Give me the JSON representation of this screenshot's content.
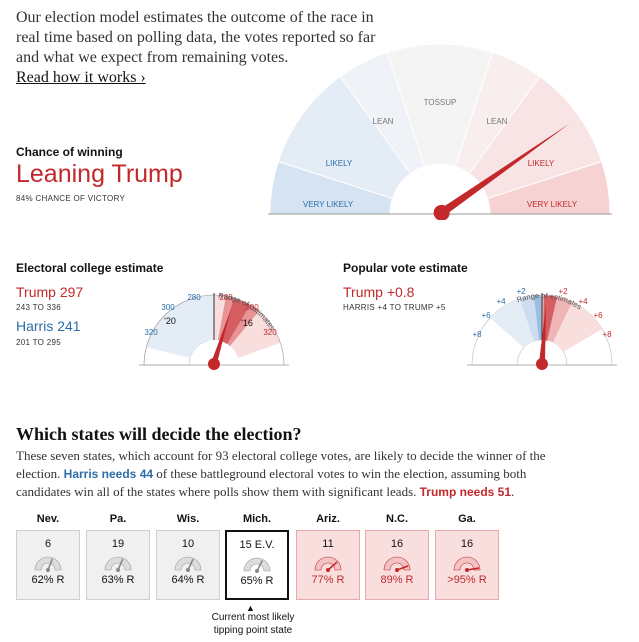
{
  "intro": {
    "text": "Our election model estimates the outcome of the race in real time based on polling data, the votes reported so far and what we expect from remaining votes.",
    "link": "Read how it works ›"
  },
  "chance": {
    "label": "Chance of winning",
    "value": "Leaning Trump",
    "sub": "84% CHANCE OF VICTORY",
    "trump_probability": 0.84,
    "segments": {
      "very_likely_left": "VERY LIKELY",
      "likely_left": "LIKELY",
      "lean_left": "LEAN",
      "tossup": "TOSSUP",
      "lean_right": "LEAN",
      "likely_right": "LIKELY",
      "very_likely_right": "VERY LIKELY"
    }
  },
  "electoral": {
    "label": "Electoral college estimate",
    "trump": "Trump 297",
    "trump_range": "243 TO 336",
    "harris": "Harris 241",
    "harris_range": "201 TO 295",
    "range_label": "Range of estimates",
    "ticks": {
      "t320l": "320",
      "t300l": "300",
      "t280l": "280",
      "t280r": "280",
      "t300r": "300",
      "t320r": "320",
      "y20": "'20",
      "y16": "'16"
    }
  },
  "popular": {
    "label": "Popular vote estimate",
    "trump": "Trump +0.8",
    "sub": "HARRIS +4 TO TRUMP +5",
    "range_label": "Range of estimates",
    "ticks": {
      "l8": "+8",
      "l6": "+6",
      "l4": "+4",
      "l2": "+2",
      "r2": "+2",
      "r4": "+4",
      "r6": "+6",
      "r8": "+8"
    }
  },
  "states": {
    "title": "Which states will decide the election?",
    "para_1": "These seven states, which account for 93 electoral college votes, are likely to decide the winner of the election. ",
    "harris_needs": "Harris needs 44",
    "para_2": " of these battleground electoral votes to win the election, assuming both candidates win all of the states where polls show them with significant leads. ",
    "trump_needs": "Trump needs 51",
    "para_3": ".",
    "list": [
      {
        "name": "Nev.",
        "ev": "6",
        "pct": "62% R",
        "level": 0.62,
        "style": "gray"
      },
      {
        "name": "Pa.",
        "ev": "19",
        "pct": "63% R",
        "level": 0.63,
        "style": "gray"
      },
      {
        "name": "Wis.",
        "ev": "10",
        "pct": "64% R",
        "level": 0.64,
        "style": "gray"
      },
      {
        "name": "Mich.",
        "ev": "15  E.V.",
        "pct": "65% R",
        "level": 0.65,
        "style": "sel"
      },
      {
        "name": "Ariz.",
        "ev": "11",
        "pct": "77% R",
        "level": 0.77,
        "style": "red"
      },
      {
        "name": "N.C.",
        "ev": "16",
        "pct": "89% R",
        "level": 0.89,
        "style": "red"
      },
      {
        "name": "Ga.",
        "ev": "16",
        "pct": ">95% R",
        "level": 0.95,
        "style": "red"
      }
    ],
    "tip_caret": "▲",
    "tip_text": "Current most likely tipping point state"
  },
  "colors": {
    "red": "#c3282b",
    "blue": "#2b6ea8"
  }
}
